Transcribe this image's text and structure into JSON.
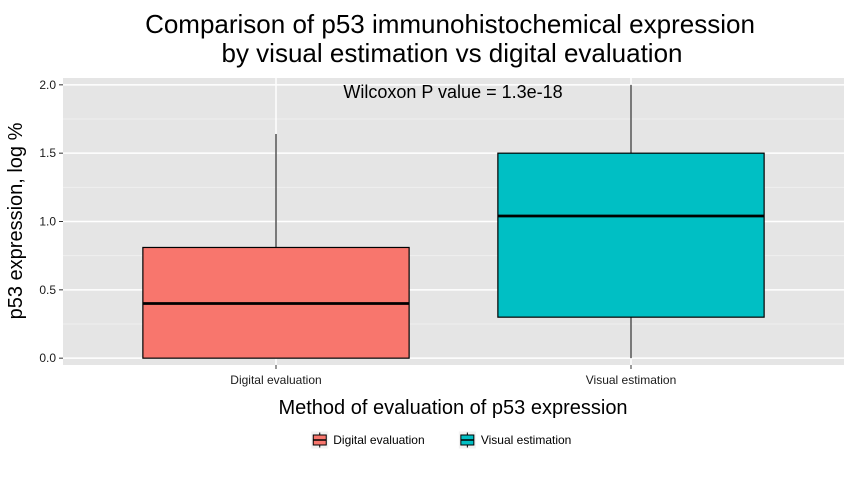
{
  "chart_data": {
    "type": "boxplot",
    "title": [
      "Comparison of p53 immunohistochemical expression",
      "by visual estimation vs digital evaluation"
    ],
    "xlabel": "Method of evaluation of p53 expression",
    "ylabel": "p53 expression, log %",
    "categories": [
      "Digital evaluation",
      "Visual estimation"
    ],
    "ylim": [
      -0.05,
      2.05
    ],
    "yticks": [
      0.0,
      0.5,
      1.0,
      1.5,
      2.0
    ],
    "ytick_labels": [
      "0.0",
      "0.5",
      "1.0",
      "1.5",
      "2.0"
    ],
    "series": [
      {
        "category": "Digital evaluation",
        "min": 0.0,
        "q1": 0.0,
        "median": 0.4,
        "q3": 0.81,
        "max": 1.64,
        "color": "#F8766D"
      },
      {
        "category": "Visual estimation",
        "min": 0.0,
        "q1": 0.3,
        "median": 1.04,
        "q3": 1.5,
        "max": 2.0,
        "color": "#00BFC4"
      }
    ],
    "annotation": "Wilcoxon P value = 1.3e-18",
    "legend": {
      "position": "bottom",
      "entries": [
        {
          "label": "Digital evaluation",
          "color": "#F8766D"
        },
        {
          "label": "Visual estimation",
          "color": "#00BFC4"
        }
      ]
    },
    "grid": true,
    "panel_background": "#E5E5E5"
  }
}
